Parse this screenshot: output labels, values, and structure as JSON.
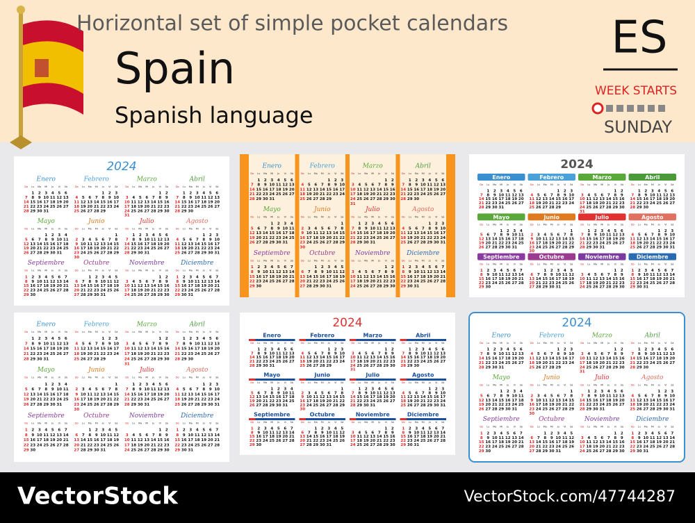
{
  "header": {
    "title": "Horizontal set of simple pocket calendars",
    "country": "Spain",
    "language": "Spanish language",
    "code": "ES",
    "week_starts_label": "WEEK STARTS",
    "week_starts_day": "SUNDAY"
  },
  "calendar": {
    "year": 2024,
    "weekdays": [
      "Do",
      "Lu",
      "Ma",
      "Mi",
      "Ju",
      "Vi",
      "Sá"
    ],
    "months": [
      {
        "name": "Enero",
        "weeks": [
          [
            null,
            1,
            2,
            3,
            4,
            5,
            6
          ],
          [
            7,
            8,
            9,
            10,
            11,
            12,
            13
          ],
          [
            14,
            15,
            16,
            17,
            18,
            19,
            20
          ],
          [
            21,
            22,
            23,
            24,
            25,
            26,
            27
          ],
          [
            28,
            29,
            30,
            31
          ]
        ]
      },
      {
        "name": "Febrero",
        "weeks": [
          [
            null,
            null,
            null,
            null,
            1,
            2,
            3
          ],
          [
            4,
            5,
            6,
            7,
            8,
            9,
            10
          ],
          [
            11,
            12,
            13,
            14,
            15,
            16,
            17
          ],
          [
            18,
            19,
            20,
            21,
            22,
            23,
            24
          ],
          [
            25,
            26,
            27,
            28,
            29
          ]
        ]
      },
      {
        "name": "Marzo",
        "weeks": [
          [
            null,
            null,
            null,
            null,
            null,
            1,
            2
          ],
          [
            3,
            4,
            5,
            6,
            7,
            8,
            9
          ],
          [
            10,
            11,
            12,
            13,
            14,
            15,
            16
          ],
          [
            17,
            18,
            19,
            20,
            21,
            22,
            23
          ],
          [
            24,
            25,
            26,
            27,
            28,
            29,
            30
          ],
          [
            31
          ]
        ]
      },
      {
        "name": "Abril",
        "weeks": [
          [
            null,
            1,
            2,
            3,
            4,
            5,
            6
          ],
          [
            7,
            8,
            9,
            10,
            11,
            12,
            13
          ],
          [
            14,
            15,
            16,
            17,
            18,
            19,
            20
          ],
          [
            21,
            22,
            23,
            24,
            25,
            26,
            27
          ],
          [
            28,
            29,
            30
          ]
        ]
      },
      {
        "name": "Mayo",
        "weeks": [
          [
            null,
            null,
            null,
            1,
            2,
            3,
            4
          ],
          [
            5,
            6,
            7,
            8,
            9,
            10,
            11
          ],
          [
            12,
            13,
            14,
            15,
            16,
            17,
            18
          ],
          [
            19,
            20,
            21,
            22,
            23,
            24,
            25
          ],
          [
            26,
            27,
            28,
            29,
            30,
            31
          ]
        ]
      },
      {
        "name": "Junio",
        "weeks": [
          [
            null,
            null,
            null,
            null,
            null,
            null,
            1
          ],
          [
            2,
            3,
            4,
            5,
            6,
            7,
            8
          ],
          [
            9,
            10,
            11,
            12,
            13,
            14,
            15
          ],
          [
            16,
            17,
            18,
            19,
            20,
            21,
            22
          ],
          [
            23,
            24,
            25,
            26,
            27,
            28,
            29
          ],
          [
            30
          ]
        ]
      },
      {
        "name": "Julio",
        "weeks": [
          [
            null,
            1,
            2,
            3,
            4,
            5,
            6
          ],
          [
            7,
            8,
            9,
            10,
            11,
            12,
            13
          ],
          [
            14,
            15,
            16,
            17,
            18,
            19,
            20
          ],
          [
            21,
            22,
            23,
            24,
            25,
            26,
            27
          ],
          [
            28,
            29,
            30,
            31
          ]
        ]
      },
      {
        "name": "Agosto",
        "weeks": [
          [
            null,
            null,
            null,
            null,
            1,
            2,
            3
          ],
          [
            4,
            5,
            6,
            7,
            8,
            9,
            10
          ],
          [
            11,
            12,
            13,
            14,
            15,
            16,
            17
          ],
          [
            18,
            19,
            20,
            21,
            22,
            23,
            24
          ],
          [
            25,
            26,
            27,
            28,
            29,
            30,
            31
          ]
        ]
      },
      {
        "name": "Septiembre",
        "weeks": [
          [
            1,
            2,
            3,
            4,
            5,
            6,
            7
          ],
          [
            8,
            9,
            10,
            11,
            12,
            13,
            14
          ],
          [
            15,
            16,
            17,
            18,
            19,
            20,
            21
          ],
          [
            22,
            23,
            24,
            25,
            26,
            27,
            28
          ],
          [
            29,
            30
          ]
        ]
      },
      {
        "name": "Octubre",
        "weeks": [
          [
            null,
            null,
            1,
            2,
            3,
            4,
            5
          ],
          [
            6,
            7,
            8,
            9,
            10,
            11,
            12
          ],
          [
            13,
            14,
            15,
            16,
            17,
            18,
            19
          ],
          [
            20,
            21,
            22,
            23,
            24,
            25,
            26
          ],
          [
            27,
            28,
            29,
            30,
            31
          ]
        ]
      },
      {
        "name": "Noviembre",
        "weeks": [
          [
            null,
            null,
            null,
            null,
            null,
            1,
            2
          ],
          [
            3,
            4,
            5,
            6,
            7,
            8,
            9
          ],
          [
            10,
            11,
            12,
            13,
            14,
            15,
            16
          ],
          [
            17,
            18,
            19,
            20,
            21,
            22,
            23
          ],
          [
            24,
            25,
            26,
            27,
            28,
            29,
            30
          ]
        ]
      },
      {
        "name": "Diciembre",
        "weeks": [
          [
            1,
            2,
            3,
            4,
            5,
            6,
            7
          ],
          [
            8,
            9,
            10,
            11,
            12,
            13,
            14
          ],
          [
            15,
            16,
            17,
            18,
            19,
            20,
            21
          ],
          [
            22,
            23,
            24,
            25,
            26,
            27,
            28
          ],
          [
            29,
            30,
            31
          ]
        ]
      }
    ]
  },
  "footer": {
    "brand": "VectorStock",
    "url": "VectorStock.com/47744287"
  }
}
